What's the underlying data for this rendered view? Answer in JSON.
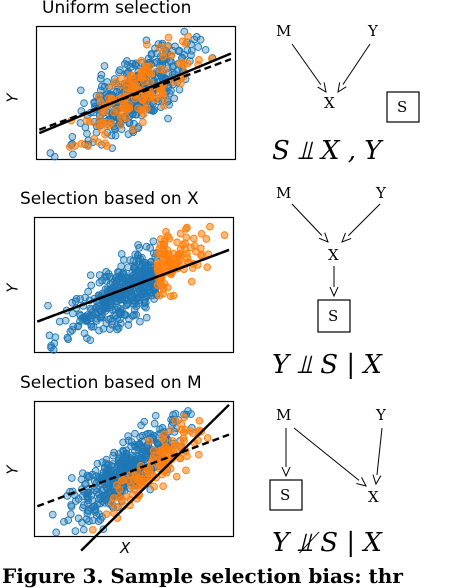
{
  "panels": [
    {
      "title": "Uniform selection",
      "xlabel": "",
      "ylabel": "Y",
      "formula": "S ⫫ X , Y",
      "selection": "uniform",
      "orange_fit": {
        "slope": 0.62,
        "intercept": 0.0
      },
      "all_fit": {
        "slope": 0.55,
        "intercept": -0.05
      }
    },
    {
      "title": "Selection based on X",
      "xlabel": "",
      "ylabel": "Y",
      "formula": "Y ⫫ S | X",
      "selection": "x",
      "orange_fit": {
        "slope": 0.55,
        "intercept": -0.02
      },
      "all_fit": {
        "slope": 0.55,
        "intercept": -0.02
      }
    },
    {
      "title": "Selection based on M",
      "xlabel": "X",
      "ylabel": "Y",
      "formula": "Y ⫫̸ S | X",
      "selection": "m",
      "orange_fit": {
        "slope": 1.45,
        "intercept": -1.3
      },
      "all_fit": {
        "slope": 0.55,
        "intercept": -0.05
      }
    }
  ],
  "dags": [
    {
      "nodes": [
        "M",
        "Y",
        "X",
        "S"
      ]
    },
    {
      "nodes": [
        "M",
        "Y",
        "X",
        "S"
      ]
    },
    {
      "nodes": [
        "M",
        "Y",
        "X",
        "S"
      ]
    }
  ],
  "caption": "Figure 3. Sample selection bias: thr",
  "colors": {
    "blue": "#1f77b4",
    "orange": "#ff7f0e"
  }
}
